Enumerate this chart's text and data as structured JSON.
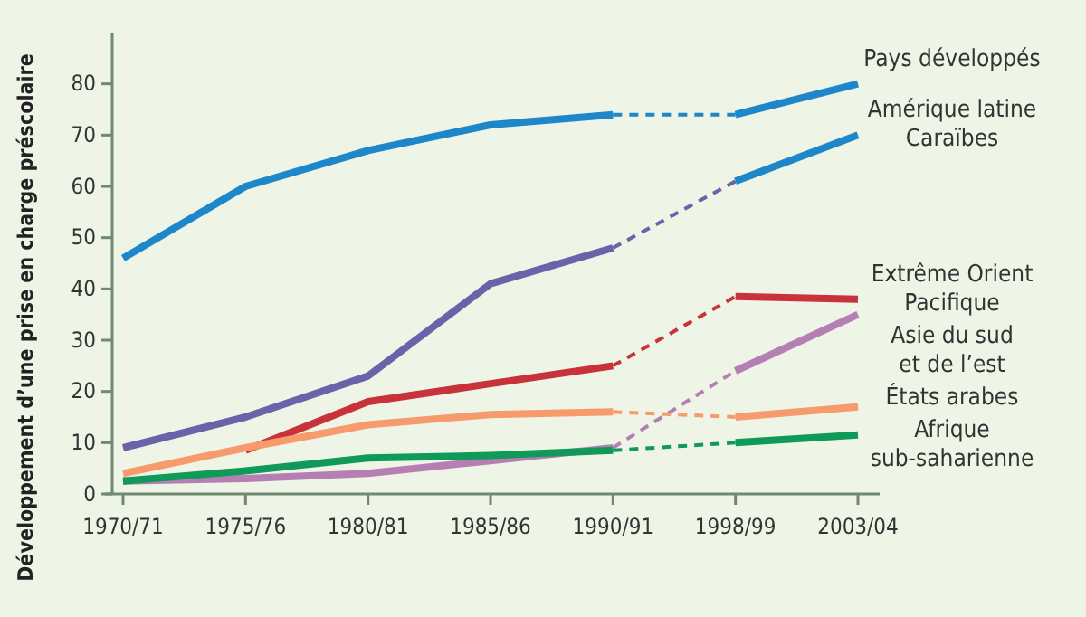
{
  "chart_data": {
    "type": "line",
    "ylabel": "Développement d’une prise en charge préscolaire",
    "categories": [
      "1970/71",
      "1975/76",
      "1980/81",
      "1985/86",
      "1990/91",
      "1998/99",
      "2003/04"
    ],
    "ylim": [
      0,
      90
    ],
    "yticks": [
      0,
      10,
      20,
      30,
      40,
      50,
      60,
      70,
      80
    ],
    "grid": false,
    "legend": false,
    "marker": "none",
    "series": [
      {
        "color": "#1d87c9",
        "line_style": "solid",
        "values": [
          46,
          60,
          67,
          72,
          74,
          null,
          null
        ]
      },
      {
        "color": "#1d87c9",
        "line_style": "dashed",
        "values": [
          null,
          null,
          null,
          null,
          74,
          74,
          null
        ]
      },
      {
        "name": "Pays développés",
        "color": "#1d87c9",
        "line_style": "solid",
        "values": [
          null,
          null,
          null,
          null,
          null,
          74,
          80
        ]
      },
      {
        "color": "#6b62aa",
        "line_style": "solid",
        "values": [
          9,
          15,
          23,
          41,
          48,
          null,
          null
        ]
      },
      {
        "color": "#6b62aa",
        "line_style": "dashed",
        "values": [
          null,
          null,
          null,
          null,
          48,
          61,
          null
        ]
      },
      {
        "name": "Amérique latine\nCaraïbes",
        "color": "#1d87c9",
        "line_style": "solid",
        "values": [
          null,
          null,
          null,
          null,
          null,
          61,
          70
        ]
      },
      {
        "color": "#c8323a",
        "line_style": "solid",
        "values": [
          null,
          8.5,
          18,
          21.5,
          25,
          null,
          null
        ]
      },
      {
        "color": "#c8323a",
        "line_style": "dashed",
        "values": [
          null,
          null,
          null,
          null,
          25,
          38.5,
          null
        ]
      },
      {
        "name": "Extrême Orient\nPacifique",
        "color": "#c8323a",
        "line_style": "solid",
        "values": [
          null,
          null,
          null,
          null,
          null,
          38.5,
          38
        ]
      },
      {
        "color": "#b67fb3",
        "line_style": "solid",
        "values": [
          2.5,
          3,
          4,
          6.5,
          9,
          null,
          null
        ]
      },
      {
        "color": "#b67fb3",
        "line_style": "dashed",
        "values": [
          null,
          null,
          null,
          null,
          9,
          24,
          null
        ]
      },
      {
        "name": "Asie du sud\net de l’est",
        "color": "#b67fb3",
        "line_style": "solid",
        "values": [
          null,
          null,
          null,
          null,
          null,
          24,
          35
        ]
      },
      {
        "color": "#f79a6c",
        "line_style": "solid",
        "values": [
          4,
          9,
          13.5,
          15.5,
          16,
          null,
          null
        ]
      },
      {
        "color": "#f79a6c",
        "line_style": "dashed",
        "values": [
          null,
          null,
          null,
          null,
          16,
          15,
          null
        ]
      },
      {
        "name": "États arabes",
        "color": "#f79a6c",
        "line_style": "solid",
        "values": [
          null,
          null,
          null,
          null,
          null,
          15,
          17
        ]
      },
      {
        "color": "#0f9a5a",
        "line_style": "solid",
        "values": [
          2.5,
          4.5,
          7,
          7.5,
          8.5,
          null,
          null
        ]
      },
      {
        "color": "#0f9a5a",
        "line_style": "dashed",
        "values": [
          null,
          null,
          null,
          null,
          8.5,
          10,
          null
        ]
      },
      {
        "name": "Afrique\nsub-saharienne",
        "color": "#0f9a5a",
        "line_style": "solid",
        "values": [
          null,
          null,
          null,
          null,
          null,
          10,
          11.5
        ]
      }
    ]
  }
}
